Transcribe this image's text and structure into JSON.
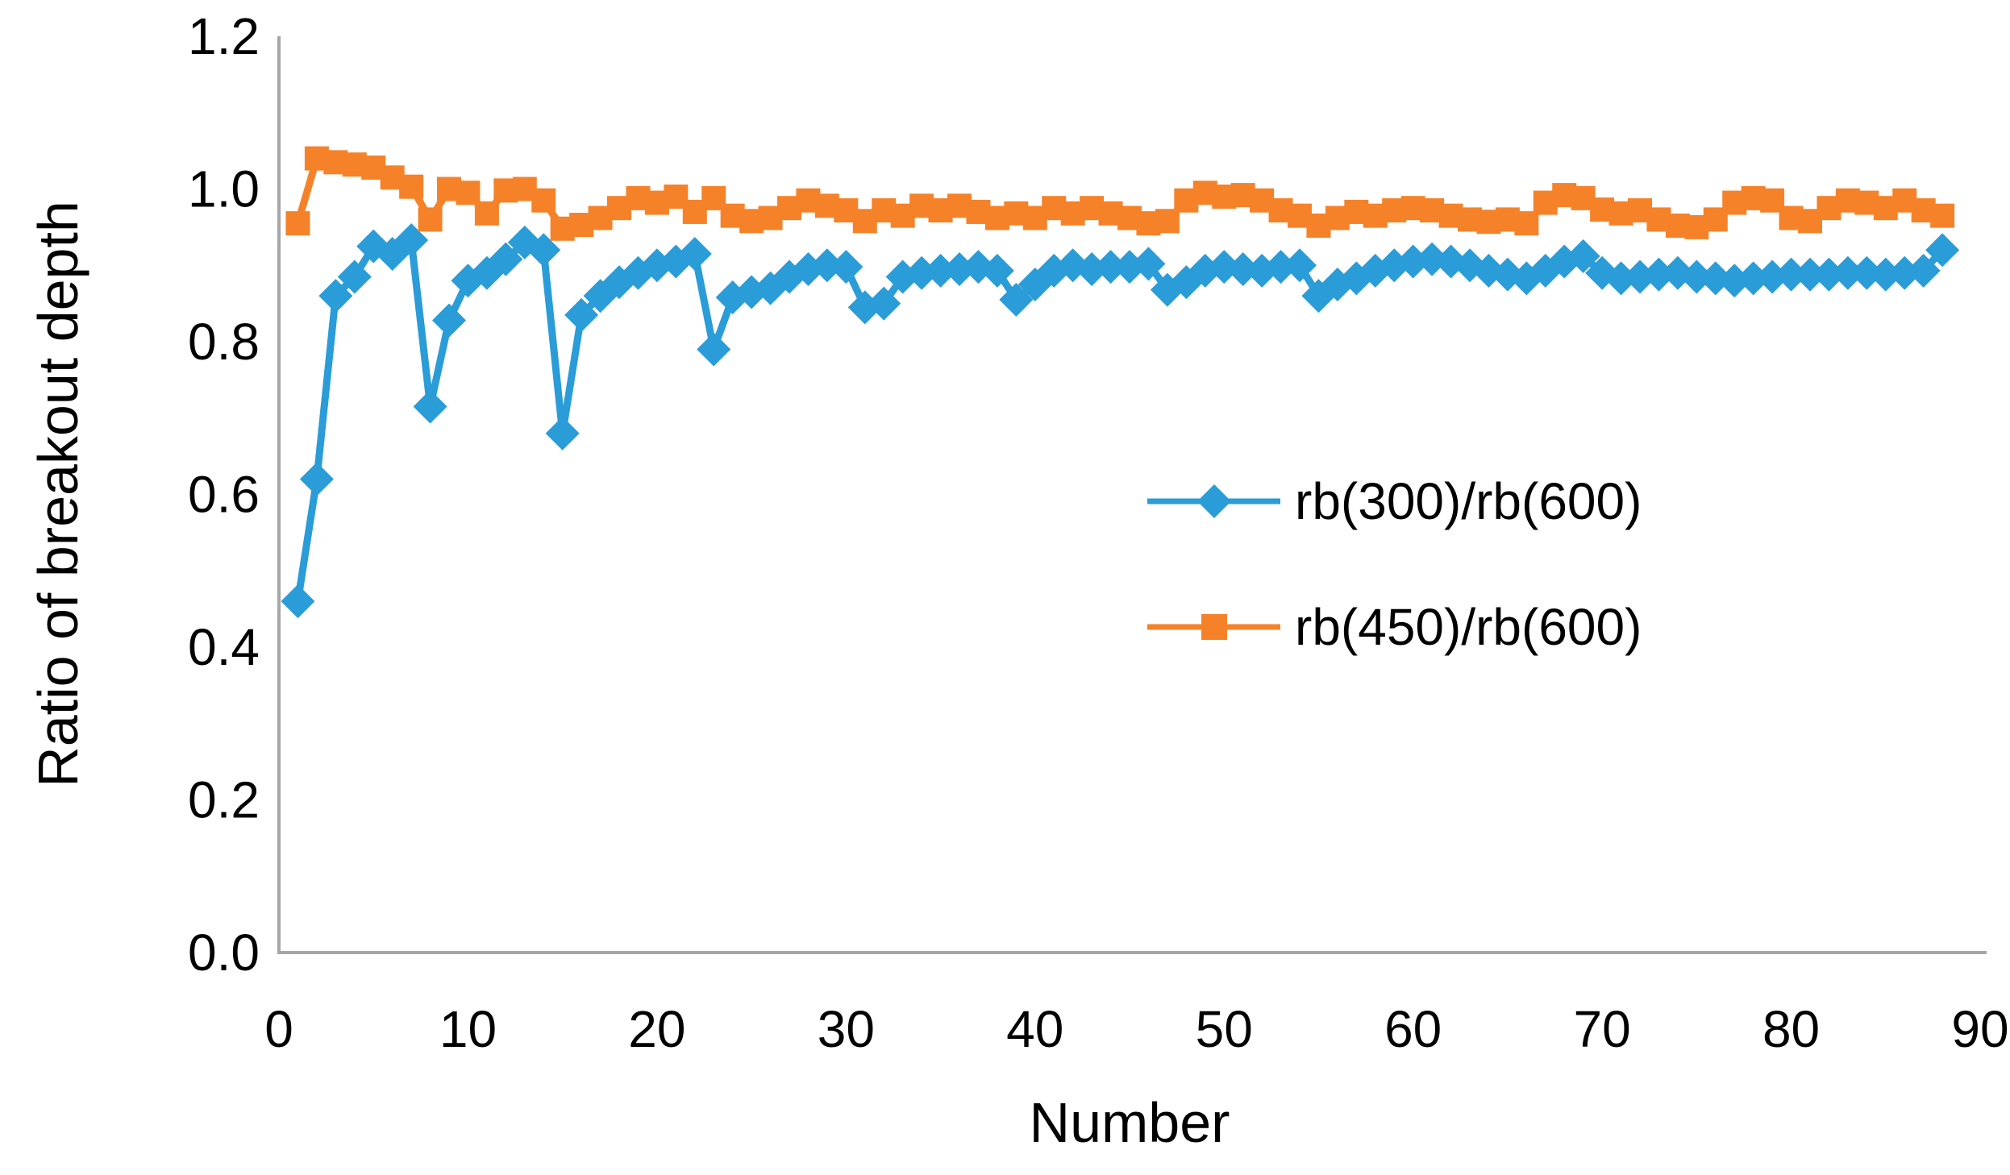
{
  "figure": {
    "background": "#ffffff"
  },
  "colors": {
    "series1": "#2A9CD7",
    "series2": "#F58229",
    "axis_line": "#A6A6A6",
    "text": "#000000"
  },
  "legend": {
    "entries": [
      {
        "label": "rb(300)/rb(600)",
        "marker": "diamond-icon",
        "color": "#2A9CD7"
      },
      {
        "label": "rb(450)/rb(600)",
        "marker": "square-icon",
        "color": "#F58229"
      }
    ]
  },
  "chart_data": {
    "type": "line",
    "title": "",
    "xlabel": "Number",
    "ylabel": "Ratio of breakout depth",
    "xlim": [
      0,
      90
    ],
    "ylim": [
      0,
      1.2
    ],
    "grid": false,
    "legend_position": "inside-center-right",
    "xticks": [
      {
        "label": "0",
        "value": 0
      },
      {
        "label": "10",
        "value": 10
      },
      {
        "label": "20",
        "value": 20
      },
      {
        "label": "30",
        "value": 30
      },
      {
        "label": "40",
        "value": 40
      },
      {
        "label": "50",
        "value": 50
      },
      {
        "label": "60",
        "value": 60
      },
      {
        "label": "70",
        "value": 70
      },
      {
        "label": "80",
        "value": 80
      },
      {
        "label": "90",
        "value": 90
      }
    ],
    "yticks": [
      {
        "label": "0.0",
        "value": 0.0
      },
      {
        "label": "0.2",
        "value": 0.2
      },
      {
        "label": "0.4",
        "value": 0.4
      },
      {
        "label": "0.6",
        "value": 0.6
      },
      {
        "label": "0.8",
        "value": 0.8
      },
      {
        "label": "1.0",
        "value": 1.0
      },
      {
        "label": "1.2",
        "value": 1.2
      }
    ],
    "x": [
      1,
      2,
      3,
      4,
      5,
      6,
      7,
      8,
      9,
      10,
      11,
      12,
      13,
      14,
      15,
      16,
      17,
      18,
      19,
      20,
      21,
      22,
      23,
      24,
      25,
      26,
      27,
      28,
      29,
      30,
      31,
      32,
      33,
      34,
      35,
      36,
      37,
      38,
      39,
      40,
      41,
      42,
      43,
      44,
      45,
      46,
      47,
      48,
      49,
      50,
      51,
      52,
      53,
      54,
      55,
      56,
      57,
      58,
      59,
      60,
      61,
      62,
      63,
      64,
      65,
      66,
      67,
      68,
      69,
      70,
      71,
      72,
      73,
      74,
      75,
      76,
      77,
      78,
      79,
      80,
      81,
      82,
      83,
      84,
      85,
      86,
      87,
      88
    ],
    "series": [
      {
        "name": "rb(300)/rb(600)",
        "color": "#2A9CD7",
        "marker": "diamond",
        "values": [
          0.46,
          0.62,
          0.86,
          0.885,
          0.925,
          0.915,
          0.933,
          0.715,
          0.828,
          0.88,
          0.89,
          0.908,
          0.93,
          0.92,
          0.68,
          0.835,
          0.86,
          0.878,
          0.89,
          0.9,
          0.905,
          0.915,
          0.79,
          0.858,
          0.865,
          0.87,
          0.885,
          0.895,
          0.9,
          0.898,
          0.845,
          0.85,
          0.885,
          0.89,
          0.893,
          0.895,
          0.898,
          0.893,
          0.855,
          0.875,
          0.893,
          0.9,
          0.895,
          0.898,
          0.898,
          0.902,
          0.868,
          0.878,
          0.893,
          0.898,
          0.895,
          0.893,
          0.898,
          0.9,
          0.86,
          0.875,
          0.883,
          0.893,
          0.9,
          0.905,
          0.908,
          0.905,
          0.9,
          0.893,
          0.888,
          0.883,
          0.893,
          0.905,
          0.912,
          0.89,
          0.883,
          0.885,
          0.888,
          0.89,
          0.885,
          0.883,
          0.88,
          0.883,
          0.885,
          0.888,
          0.888,
          0.888,
          0.89,
          0.89,
          0.888,
          0.89,
          0.893,
          0.92
        ]
      },
      {
        "name": "rb(450)/rb(600)",
        "color": "#F58229",
        "marker": "square",
        "values": [
          0.955,
          1.04,
          1.035,
          1.032,
          1.028,
          1.015,
          1.003,
          0.96,
          1.0,
          0.995,
          0.968,
          0.998,
          1.0,
          0.985,
          0.948,
          0.953,
          0.962,
          0.975,
          0.988,
          0.982,
          0.99,
          0.97,
          0.988,
          0.965,
          0.958,
          0.962,
          0.975,
          0.985,
          0.978,
          0.972,
          0.958,
          0.972,
          0.965,
          0.978,
          0.972,
          0.978,
          0.97,
          0.962,
          0.968,
          0.962,
          0.975,
          0.968,
          0.975,
          0.968,
          0.962,
          0.955,
          0.958,
          0.985,
          0.995,
          0.99,
          0.992,
          0.985,
          0.972,
          0.965,
          0.952,
          0.962,
          0.97,
          0.965,
          0.972,
          0.975,
          0.972,
          0.965,
          0.96,
          0.957,
          0.96,
          0.955,
          0.982,
          0.992,
          0.988,
          0.973,
          0.968,
          0.972,
          0.96,
          0.952,
          0.95,
          0.96,
          0.982,
          0.988,
          0.985,
          0.962,
          0.958,
          0.975,
          0.985,
          0.982,
          0.975,
          0.985,
          0.972,
          0.965
        ]
      }
    ]
  }
}
